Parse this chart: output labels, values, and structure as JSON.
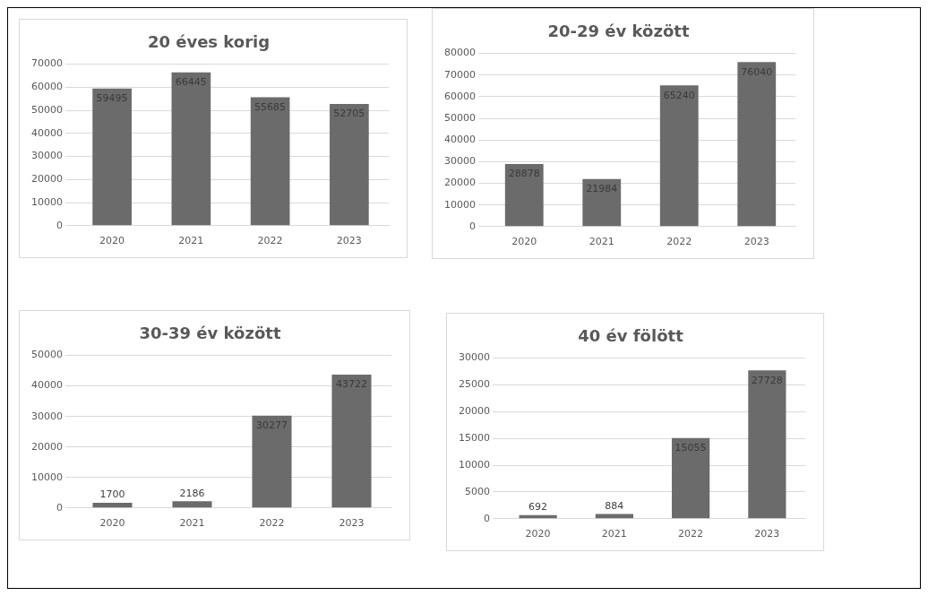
{
  "chart_data": [
    {
      "type": "bar",
      "title": "20 éves korig",
      "categories": [
        "2020",
        "2021",
        "2022",
        "2023"
      ],
      "values": [
        59495,
        66445,
        55685,
        52705
      ],
      "color": "#6b6b6b",
      "ylim": [
        0,
        70000
      ],
      "yticks": [
        0,
        10000,
        20000,
        30000,
        40000,
        50000,
        60000,
        70000
      ],
      "grid": "y",
      "data_labels": true
    },
    {
      "type": "bar",
      "title": "20-29 év között",
      "categories": [
        "2020",
        "2021",
        "2022",
        "2023"
      ],
      "values": [
        28878,
        21984,
        65240,
        76040
      ],
      "color": "#6b6b6b",
      "ylim": [
        0,
        80000
      ],
      "yticks": [
        0,
        10000,
        20000,
        30000,
        40000,
        50000,
        60000,
        70000,
        80000
      ],
      "grid": "y",
      "data_labels": true
    },
    {
      "type": "bar",
      "title": "30-39 év között",
      "categories": [
        "2020",
        "2021",
        "2022",
        "2023"
      ],
      "values": [
        1700,
        2186,
        30277,
        43722
      ],
      "color": "#6b6b6b",
      "ylim": [
        0,
        50000
      ],
      "yticks": [
        0,
        10000,
        20000,
        30000,
        40000,
        50000
      ],
      "grid": "y",
      "data_labels": true
    },
    {
      "type": "bar",
      "title": "40 év fölött",
      "categories": [
        "2020",
        "2021",
        "2022",
        "2023"
      ],
      "values": [
        692,
        884,
        15055,
        27728
      ],
      "color": "#6b6b6b",
      "ylim": [
        0,
        30000
      ],
      "yticks": [
        0,
        5000,
        10000,
        15000,
        20000,
        25000,
        30000
      ],
      "grid": "y",
      "data_labels": true
    }
  ]
}
